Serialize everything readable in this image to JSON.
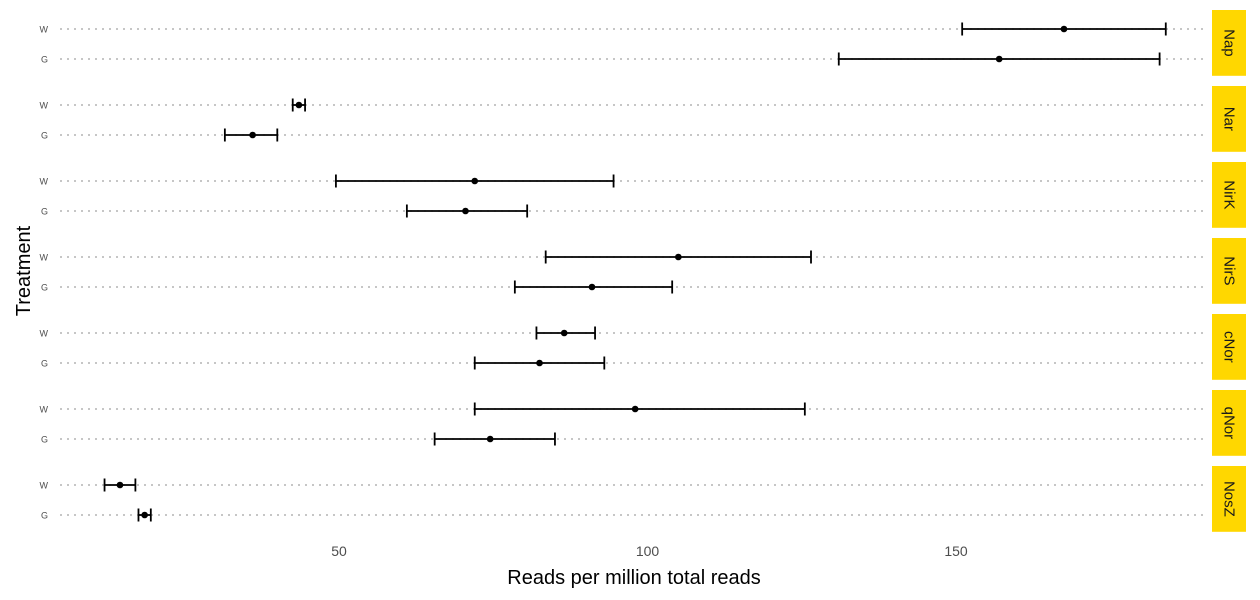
{
  "chart_data": {
    "type": "dot-errorbar",
    "xlabel": "Reads per million total reads",
    "ylabel": "Treatment",
    "x_ticks": [
      50,
      100,
      150
    ],
    "xlim": [
      6,
      190
    ],
    "strip_color": "#FFD700",
    "grid": "dotted horizontal",
    "panels": [
      {
        "label": "Nap",
        "rows": [
          {
            "treatment": "W",
            "mean": 167.5,
            "low": 151,
            "high": 184
          },
          {
            "treatment": "G",
            "mean": 157,
            "low": 131,
            "high": 183
          }
        ]
      },
      {
        "label": "Nar",
        "rows": [
          {
            "treatment": "W",
            "mean": 43.5,
            "low": 42.5,
            "high": 44.5
          },
          {
            "treatment": "G",
            "mean": 36,
            "low": 31.5,
            "high": 40
          }
        ]
      },
      {
        "label": "NirK",
        "rows": [
          {
            "treatment": "W",
            "mean": 72,
            "low": 49.5,
            "high": 94.5
          },
          {
            "treatment": "G",
            "mean": 70.5,
            "low": 61,
            "high": 80.5
          }
        ]
      },
      {
        "label": "NirS",
        "rows": [
          {
            "treatment": "W",
            "mean": 105,
            "low": 83.5,
            "high": 126.5
          },
          {
            "treatment": "G",
            "mean": 91,
            "low": 78.5,
            "high": 104
          }
        ]
      },
      {
        "label": "cNor",
        "rows": [
          {
            "treatment": "W",
            "mean": 86.5,
            "low": 82,
            "high": 91.5
          },
          {
            "treatment": "G",
            "mean": 82.5,
            "low": 72,
            "high": 93
          }
        ]
      },
      {
        "label": "qNor",
        "rows": [
          {
            "treatment": "W",
            "mean": 98,
            "low": 72,
            "high": 125.5
          },
          {
            "treatment": "G",
            "mean": 74.5,
            "low": 65.5,
            "high": 85
          }
        ]
      },
      {
        "label": "NosZ",
        "rows": [
          {
            "treatment": "W",
            "mean": 14.5,
            "low": 12,
            "high": 17
          },
          {
            "treatment": "G",
            "mean": 18.5,
            "low": 17.5,
            "high": 19.5
          }
        ]
      }
    ]
  }
}
